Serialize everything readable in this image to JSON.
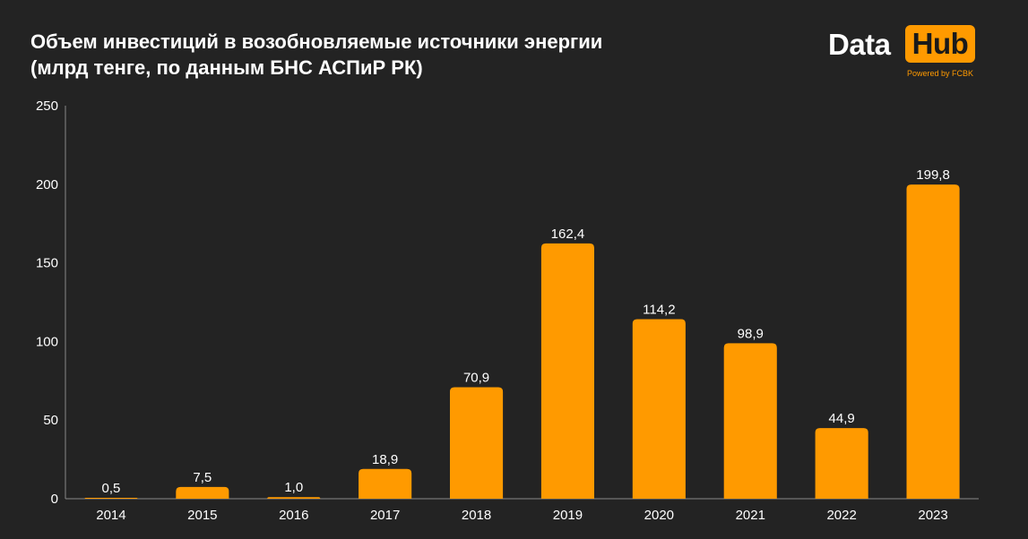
{
  "title_lines": [
    "Объем инвестиций в возобновляемые источники энергии",
    "(млрд тенге, по данным БНС АСПиР РК)"
  ],
  "logo": {
    "word1": "Data",
    "word2": "Hub",
    "powered": "Powered by FCBK",
    "accent_color": "#FF9A00"
  },
  "chart_data": {
    "type": "bar",
    "title": "Объем инвестиций в возобновляемые источники энергии (млрд тенге, по данным БНС АСПиР РК)",
    "xlabel": "",
    "ylabel": "",
    "categories": [
      "2014",
      "2015",
      "2016",
      "2017",
      "2018",
      "2019",
      "2020",
      "2021",
      "2022",
      "2023"
    ],
    "values": [
      0.5,
      7.5,
      1.0,
      18.9,
      70.9,
      162.4,
      114.2,
      98.9,
      44.9,
      199.8
    ],
    "value_labels": [
      "0,5",
      "7,5",
      "1,0",
      "18,9",
      "70,9",
      "162,4",
      "114,2",
      "98,9",
      "44,9",
      "199,8"
    ],
    "ylim": [
      0,
      250
    ],
    "yticks": [
      0,
      50,
      100,
      150,
      200,
      250
    ],
    "ytick_labels": [
      "0",
      "50",
      "100",
      "150",
      "200",
      "250"
    ],
    "grid": false,
    "legend": "none",
    "bar_color": "#FF9A00",
    "axis_color": "#8a8a8a"
  }
}
